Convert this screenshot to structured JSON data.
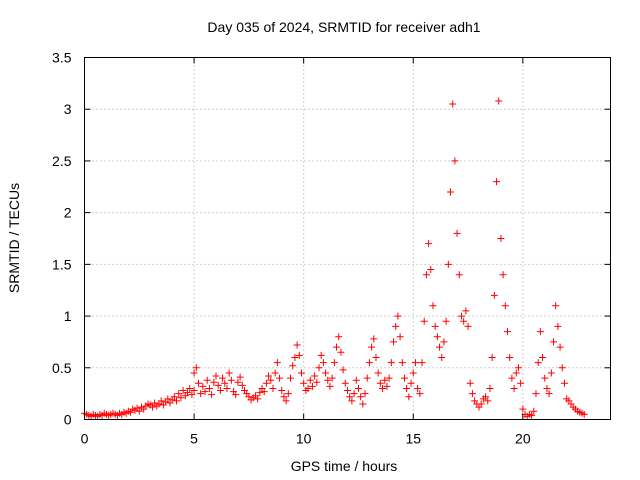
{
  "chart_data": {
    "type": "scatter",
    "title": "Day 035 of 2024, SRMTID for receiver adh1",
    "xlabel": "GPS time / hours",
    "ylabel": "SRMTID / TECUs",
    "xlim": [
      0,
      24
    ],
    "ylim": [
      0,
      3.5
    ],
    "xticks": [
      0,
      5,
      10,
      15,
      20
    ],
    "xtick_labels": [
      "0",
      "5",
      "10",
      "15",
      "20"
    ],
    "yticks": [
      0,
      0.5,
      1,
      1.5,
      2,
      2.5,
      3,
      3.5
    ],
    "ytick_labels": [
      "0",
      "0.5",
      "1",
      "1.5",
      "2",
      "2.5",
      "3",
      "3.5"
    ],
    "grid": true,
    "marker": "+",
    "color": "#ff0000",
    "series": [
      {
        "name": "adh1",
        "points": [
          [
            0.0,
            0.06
          ],
          [
            0.1,
            0.05
          ],
          [
            0.2,
            0.04
          ],
          [
            0.3,
            0.03
          ],
          [
            0.4,
            0.05
          ],
          [
            0.5,
            0.04
          ],
          [
            0.6,
            0.03
          ],
          [
            0.7,
            0.05
          ],
          [
            0.8,
            0.04
          ],
          [
            0.9,
            0.06
          ],
          [
            1.0,
            0.05
          ],
          [
            1.1,
            0.04
          ],
          [
            1.2,
            0.05
          ],
          [
            1.3,
            0.06
          ],
          [
            1.4,
            0.05
          ],
          [
            1.5,
            0.04
          ],
          [
            1.6,
            0.06
          ],
          [
            1.7,
            0.05
          ],
          [
            1.8,
            0.07
          ],
          [
            1.9,
            0.06
          ],
          [
            2.0,
            0.08
          ],
          [
            2.1,
            0.07
          ],
          [
            2.2,
            0.1
          ],
          [
            2.3,
            0.09
          ],
          [
            2.4,
            0.11
          ],
          [
            2.5,
            0.08
          ],
          [
            2.6,
            0.12
          ],
          [
            2.7,
            0.1
          ],
          [
            2.8,
            0.13
          ],
          [
            2.9,
            0.15
          ],
          [
            3.0,
            0.14
          ],
          [
            3.1,
            0.12
          ],
          [
            3.2,
            0.16
          ],
          [
            3.3,
            0.13
          ],
          [
            3.4,
            0.15
          ],
          [
            3.5,
            0.18
          ],
          [
            3.6,
            0.14
          ],
          [
            3.7,
            0.17
          ],
          [
            3.8,
            0.2
          ],
          [
            3.9,
            0.16
          ],
          [
            4.0,
            0.19
          ],
          [
            4.1,
            0.22
          ],
          [
            4.2,
            0.18
          ],
          [
            4.3,
            0.25
          ],
          [
            4.4,
            0.21
          ],
          [
            4.5,
            0.28
          ],
          [
            4.6,
            0.23
          ],
          [
            4.7,
            0.26
          ],
          [
            4.8,
            0.3
          ],
          [
            4.9,
            0.24
          ],
          [
            5.0,
            0.28
          ],
          [
            5.0,
            0.45
          ],
          [
            5.1,
            0.5
          ],
          [
            5.2,
            0.35
          ],
          [
            5.3,
            0.25
          ],
          [
            5.4,
            0.32
          ],
          [
            5.5,
            0.27
          ],
          [
            5.6,
            0.38
          ],
          [
            5.7,
            0.3
          ],
          [
            5.8,
            0.24
          ],
          [
            5.9,
            0.36
          ],
          [
            6.0,
            0.42
          ],
          [
            6.1,
            0.33
          ],
          [
            6.2,
            0.28
          ],
          [
            6.3,
            0.4
          ],
          [
            6.4,
            0.35
          ],
          [
            6.5,
            0.3
          ],
          [
            6.6,
            0.45
          ],
          [
            6.7,
            0.38
          ],
          [
            6.8,
            0.27
          ],
          [
            6.9,
            0.24
          ],
          [
            7.0,
            0.36
          ],
          [
            7.1,
            0.41
          ],
          [
            7.2,
            0.33
          ],
          [
            7.3,
            0.28
          ],
          [
            7.4,
            0.25
          ],
          [
            7.5,
            0.22
          ],
          [
            7.6,
            0.19
          ],
          [
            7.7,
            0.21
          ],
          [
            7.8,
            0.23
          ],
          [
            7.9,
            0.2
          ],
          [
            8.0,
            0.26
          ],
          [
            8.1,
            0.3
          ],
          [
            8.2,
            0.27
          ],
          [
            8.3,
            0.35
          ],
          [
            8.4,
            0.42
          ],
          [
            8.5,
            0.38
          ],
          [
            8.6,
            0.3
          ],
          [
            8.7,
            0.45
          ],
          [
            8.8,
            0.55
          ],
          [
            8.9,
            0.4
          ],
          [
            9.0,
            0.28
          ],
          [
            9.1,
            0.22
          ],
          [
            9.2,
            0.18
          ],
          [
            9.3,
            0.25
          ],
          [
            9.4,
            0.4
          ],
          [
            9.5,
            0.52
          ],
          [
            9.6,
            0.6
          ],
          [
            9.7,
            0.72
          ],
          [
            9.8,
            0.62
          ],
          [
            9.9,
            0.45
          ],
          [
            10.0,
            0.35
          ],
          [
            10.1,
            0.28
          ],
          [
            10.2,
            0.3
          ],
          [
            10.3,
            0.38
          ],
          [
            10.4,
            0.32
          ],
          [
            10.5,
            0.42
          ],
          [
            10.6,
            0.36
          ],
          [
            10.7,
            0.5
          ],
          [
            10.8,
            0.62
          ],
          [
            10.9,
            0.55
          ],
          [
            11.0,
            0.45
          ],
          [
            11.1,
            0.38
          ],
          [
            11.2,
            0.32
          ],
          [
            11.3,
            0.4
          ],
          [
            11.4,
            0.55
          ],
          [
            11.5,
            0.7
          ],
          [
            11.6,
            0.8
          ],
          [
            11.7,
            0.65
          ],
          [
            11.8,
            0.48
          ],
          [
            11.9,
            0.35
          ],
          [
            12.0,
            0.28
          ],
          [
            12.1,
            0.22
          ],
          [
            12.2,
            0.18
          ],
          [
            12.3,
            0.25
          ],
          [
            12.4,
            0.38
          ],
          [
            12.5,
            0.3
          ],
          [
            12.6,
            0.22
          ],
          [
            12.7,
            0.15
          ],
          [
            12.8,
            0.25
          ],
          [
            12.9,
            0.4
          ],
          [
            13.0,
            0.55
          ],
          [
            13.1,
            0.7
          ],
          [
            13.2,
            0.78
          ],
          [
            13.3,
            0.6
          ],
          [
            13.4,
            0.45
          ],
          [
            13.5,
            0.35
          ],
          [
            13.6,
            0.3
          ],
          [
            13.7,
            0.38
          ],
          [
            13.8,
            0.32
          ],
          [
            13.9,
            0.4
          ],
          [
            14.0,
            0.55
          ],
          [
            14.1,
            0.75
          ],
          [
            14.2,
            0.9
          ],
          [
            14.3,
            1.0
          ],
          [
            14.4,
            0.8
          ],
          [
            14.5,
            0.55
          ],
          [
            14.6,
            0.4
          ],
          [
            14.7,
            0.3
          ],
          [
            14.8,
            0.22
          ],
          [
            14.9,
            0.35
          ],
          [
            15.0,
            0.45
          ],
          [
            15.1,
            0.55
          ],
          [
            15.2,
            0.3
          ],
          [
            15.3,
            0.25
          ],
          [
            15.4,
            0.55
          ],
          [
            15.5,
            0.95
          ],
          [
            15.6,
            1.4
          ],
          [
            15.7,
            1.7
          ],
          [
            15.8,
            1.45
          ],
          [
            15.9,
            1.1
          ],
          [
            16.0,
            0.9
          ],
          [
            16.1,
            0.8
          ],
          [
            16.2,
            0.7
          ],
          [
            16.3,
            0.6
          ],
          [
            16.4,
            0.75
          ],
          [
            16.5,
            0.95
          ],
          [
            16.6,
            1.5
          ],
          [
            16.7,
            2.2
          ],
          [
            16.8,
            3.05
          ],
          [
            16.9,
            2.5
          ],
          [
            17.0,
            1.8
          ],
          [
            17.1,
            1.4
          ],
          [
            17.2,
            1.0
          ],
          [
            17.3,
            0.95
          ],
          [
            17.4,
            1.05
          ],
          [
            17.5,
            0.9
          ],
          [
            17.6,
            0.35
          ],
          [
            17.7,
            0.25
          ],
          [
            17.8,
            0.18
          ],
          [
            17.9,
            0.15
          ],
          [
            18.0,
            0.12
          ],
          [
            18.1,
            0.15
          ],
          [
            18.2,
            0.2
          ],
          [
            18.3,
            0.22
          ],
          [
            18.4,
            0.18
          ],
          [
            18.5,
            0.3
          ],
          [
            18.6,
            0.6
          ],
          [
            18.7,
            1.2
          ],
          [
            18.8,
            2.3
          ],
          [
            18.9,
            3.08
          ],
          [
            19.0,
            1.75
          ],
          [
            19.1,
            1.4
          ],
          [
            19.2,
            1.1
          ],
          [
            19.3,
            0.85
          ],
          [
            19.4,
            0.6
          ],
          [
            19.5,
            0.4
          ],
          [
            19.6,
            0.3
          ],
          [
            19.7,
            0.45
          ],
          [
            19.8,
            0.5
          ],
          [
            19.9,
            0.35
          ],
          [
            20.0,
            0.1
          ],
          [
            20.1,
            0.05
          ],
          [
            20.2,
            0.03
          ],
          [
            20.3,
            0.05
          ],
          [
            20.4,
            0.04
          ],
          [
            20.5,
            0.08
          ],
          [
            20.6,
            0.25
          ],
          [
            20.7,
            0.55
          ],
          [
            20.8,
            0.85
          ],
          [
            20.9,
            0.6
          ],
          [
            21.0,
            0.4
          ],
          [
            21.1,
            0.3
          ],
          [
            21.2,
            0.25
          ],
          [
            21.3,
            0.45
          ],
          [
            21.4,
            0.75
          ],
          [
            21.5,
            1.1
          ],
          [
            21.6,
            0.9
          ],
          [
            21.7,
            0.7
          ],
          [
            21.8,
            0.5
          ],
          [
            21.9,
            0.35
          ],
          [
            22.0,
            0.2
          ],
          [
            22.1,
            0.18
          ],
          [
            22.2,
            0.15
          ],
          [
            22.3,
            0.12
          ],
          [
            22.4,
            0.1
          ],
          [
            22.5,
            0.08
          ],
          [
            22.6,
            0.07
          ],
          [
            22.7,
            0.06
          ],
          [
            22.8,
            0.05
          ]
        ]
      }
    ]
  }
}
